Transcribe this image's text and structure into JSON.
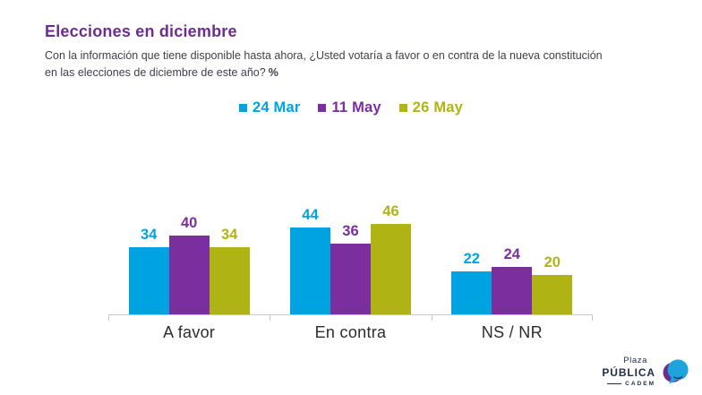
{
  "header": {
    "title": "Elecciones en diciembre",
    "question_line1": "Con la información que tiene disponible hasta ahora, ¿Usted votaría a favor o en contra de la nueva constitución",
    "question_line2": "en las elecciones de diciembre de este año?",
    "question_suffix": "%"
  },
  "chart_data": {
    "type": "bar",
    "title": "Elecciones en diciembre",
    "categories": [
      "A favor",
      "En contra",
      "NS / NR"
    ],
    "series": [
      {
        "name": "24 Mar",
        "color": "#00A3E2",
        "values": [
          34,
          44,
          22
        ]
      },
      {
        "name": "11 May",
        "color": "#7B2E9E",
        "values": [
          40,
          36,
          24
        ]
      },
      {
        "name": "26 May",
        "color": "#AFB414",
        "values": [
          34,
          46,
          20
        ]
      }
    ],
    "ylim": [
      0,
      50
    ],
    "grid": false,
    "legend_position": "top-center",
    "value_labels": true,
    "xlabel": "",
    "ylabel": ""
  },
  "colors": {
    "title": "#6E2C90",
    "question_text": "#3F404A",
    "category_label": "#2D2D2D",
    "axis_line": "#C9C9C9",
    "logo_navy": "#1F2B4D",
    "background": "#FFFFFF",
    "logo_icon_blue": "#1FA3DC",
    "logo_icon_purple": "#6B2D8F"
  },
  "logo": {
    "line1": "Plaza",
    "line2": "PÚBLICA",
    "line3": "CADEM"
  }
}
